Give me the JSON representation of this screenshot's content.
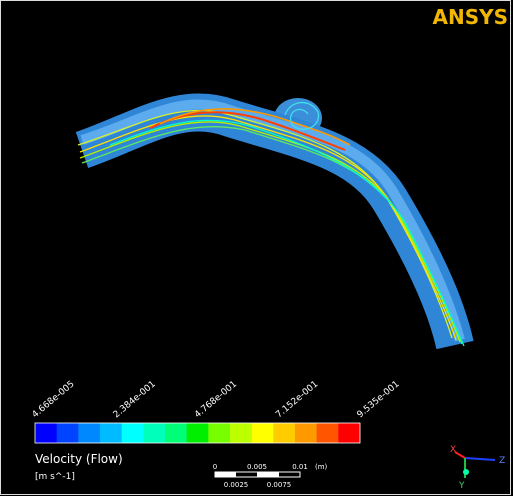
{
  "logo": "ANSYS",
  "legend": {
    "ticks": [
      "4.668e-005",
      "2.384e-001",
      "4.768e-001",
      "7.152e-001",
      "9.535e-001"
    ],
    "colors": [
      "#0000ff",
      "#0044ff",
      "#0088ff",
      "#00bbff",
      "#00ffff",
      "#00ffbb",
      "#00ff77",
      "#00ee00",
      "#77ff00",
      "#bbff00",
      "#ffff00",
      "#ffcc00",
      "#ff9900",
      "#ff5500",
      "#ff0000"
    ],
    "title": "Velocity (Flow)",
    "unit": "[m s^-1]"
  },
  "scale_bar": {
    "top": [
      "0",
      "0.005",
      "0.01"
    ],
    "unit": "(m)",
    "bottom": [
      "0.0025",
      "0.0075"
    ]
  },
  "triad": {
    "x": "X",
    "y": "Y",
    "z": "Z"
  }
}
